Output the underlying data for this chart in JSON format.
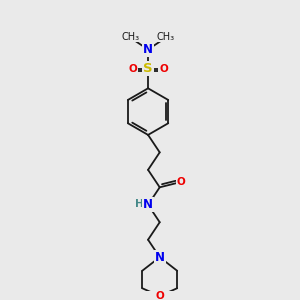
{
  "background_color": "#eaeaea",
  "bond_color": "#1a1a1a",
  "atom_colors": {
    "N": "#0000ee",
    "O": "#ee0000",
    "S": "#ccbb00",
    "C": "#1a1a1a",
    "H": "#448888"
  },
  "lw": 1.3,
  "font_size": 7.5
}
